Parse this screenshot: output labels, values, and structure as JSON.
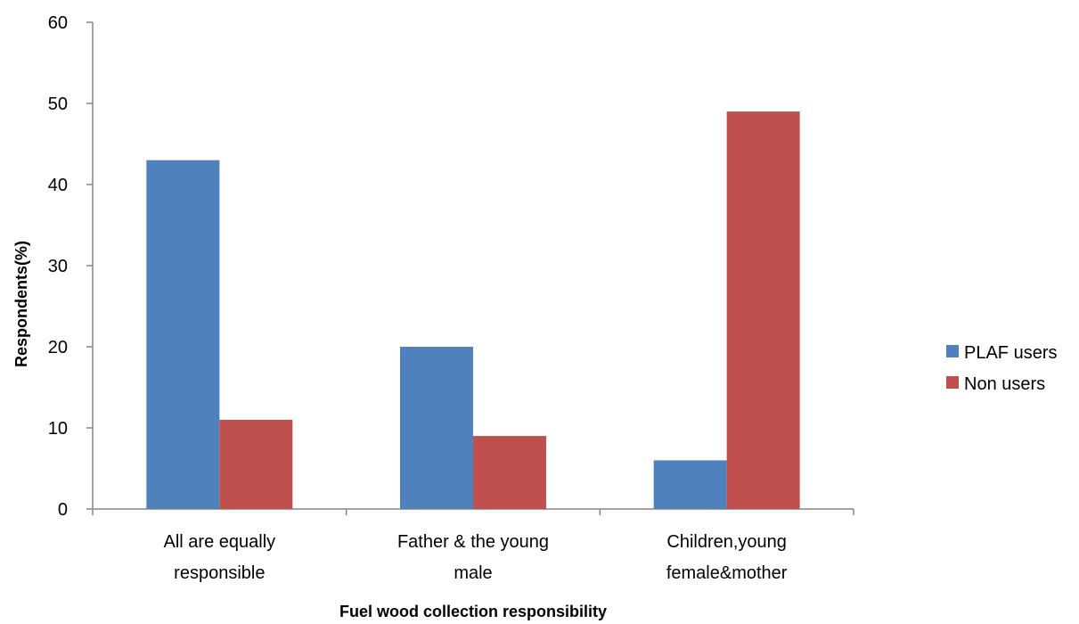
{
  "chart_data": {
    "type": "bar",
    "categories": [
      [
        "All are equally",
        "responsible"
      ],
      [
        "Father & the young",
        "male"
      ],
      [
        "Children,young",
        "female&mother"
      ]
    ],
    "series": [
      {
        "name": "PLAF users",
        "values": [
          43,
          20,
          6
        ],
        "color": "#4f81bd"
      },
      {
        "name": "Non users",
        "values": [
          11,
          9,
          49
        ],
        "color": "#c0504d"
      }
    ],
    "title": "",
    "xlabel": "Fuel wood collection responsibility",
    "ylabel": "Respondents(%)",
    "ylim": [
      0,
      60
    ],
    "yticks": [
      0,
      10,
      20,
      30,
      40,
      50,
      60
    ],
    "grid": false,
    "legend_position": "right"
  }
}
